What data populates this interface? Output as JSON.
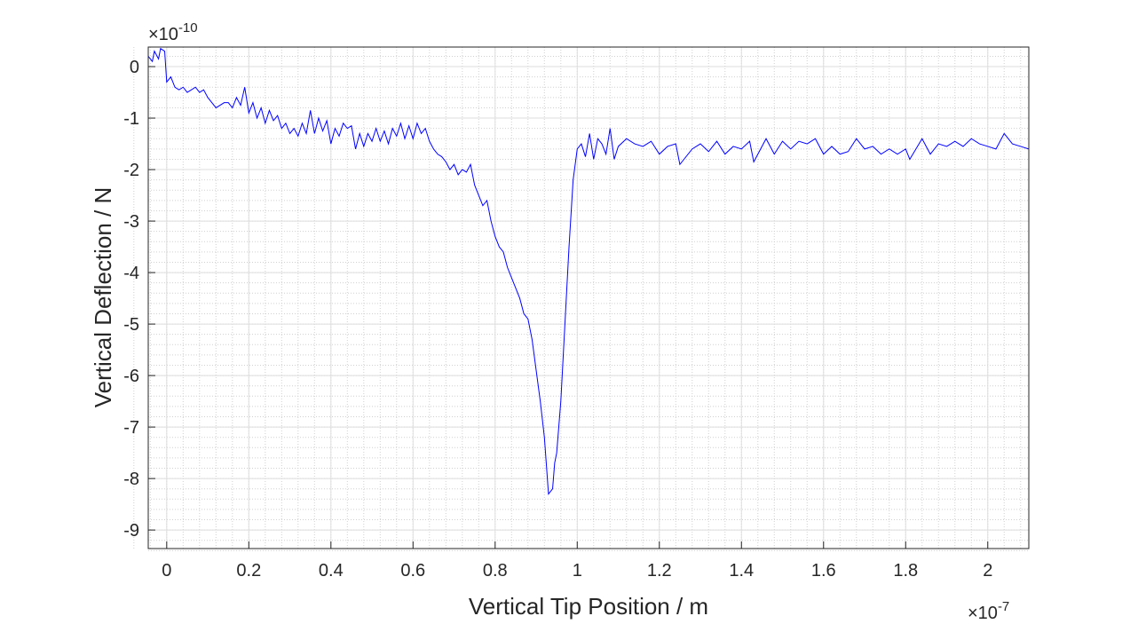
{
  "chart_data": {
    "type": "line",
    "xlabel": "Vertical Tip Position / m",
    "ylabel": "Vertical Deflection / N",
    "x_exponent": {
      "base": "×10",
      "power": "-7"
    },
    "y_exponent": {
      "base": "×10",
      "power": "-10"
    },
    "xlim": [
      -0.045,
      2.1
    ],
    "ylim": [
      -9.36,
      0.38
    ],
    "xticks": [
      0,
      0.2,
      0.4,
      0.6,
      0.8,
      1,
      1.2,
      1.4,
      1.6,
      1.8,
      2
    ],
    "yticks": [
      -9,
      -8,
      -7,
      -6,
      -5,
      -4,
      -3,
      -2,
      -1,
      0
    ],
    "grid": true,
    "minor_grid": true,
    "x": [
      -0.045,
      -0.035,
      -0.03,
      -0.02,
      -0.015,
      -0.005,
      0.0,
      0.01,
      0.02,
      0.03,
      0.04,
      0.05,
      0.06,
      0.07,
      0.08,
      0.09,
      0.1,
      0.12,
      0.14,
      0.15,
      0.16,
      0.17,
      0.18,
      0.19,
      0.2,
      0.21,
      0.22,
      0.23,
      0.24,
      0.25,
      0.26,
      0.27,
      0.28,
      0.29,
      0.3,
      0.31,
      0.32,
      0.33,
      0.34,
      0.35,
      0.36,
      0.37,
      0.38,
      0.39,
      0.4,
      0.41,
      0.42,
      0.43,
      0.44,
      0.45,
      0.46,
      0.47,
      0.48,
      0.49,
      0.5,
      0.51,
      0.52,
      0.53,
      0.54,
      0.55,
      0.56,
      0.57,
      0.58,
      0.59,
      0.6,
      0.61,
      0.62,
      0.63,
      0.64,
      0.65,
      0.66,
      0.67,
      0.68,
      0.69,
      0.7,
      0.71,
      0.72,
      0.73,
      0.74,
      0.75,
      0.76,
      0.77,
      0.78,
      0.79,
      0.8,
      0.81,
      0.82,
      0.83,
      0.84,
      0.85,
      0.86,
      0.87,
      0.88,
      0.89,
      0.9,
      0.91,
      0.92,
      0.93,
      0.94,
      0.945,
      0.95,
      0.96,
      0.97,
      0.98,
      0.99,
      1.0,
      1.01,
      1.02,
      1.03,
      1.04,
      1.05,
      1.06,
      1.07,
      1.08,
      1.09,
      1.1,
      1.12,
      1.14,
      1.16,
      1.18,
      1.2,
      1.22,
      1.24,
      1.25,
      1.28,
      1.3,
      1.32,
      1.34,
      1.36,
      1.38,
      1.4,
      1.42,
      1.43,
      1.46,
      1.48,
      1.5,
      1.52,
      1.54,
      1.56,
      1.58,
      1.6,
      1.62,
      1.64,
      1.66,
      1.68,
      1.7,
      1.72,
      1.74,
      1.76,
      1.78,
      1.8,
      1.81,
      1.84,
      1.86,
      1.88,
      1.9,
      1.92,
      1.94,
      1.96,
      1.98,
      2.0,
      2.02,
      2.04,
      2.06,
      2.08,
      2.1
    ],
    "series": [
      {
        "color": "#0000ff",
        "values": [
          0.2,
          0.1,
          0.3,
          0.15,
          0.35,
          0.3,
          -0.3,
          -0.2,
          -0.4,
          -0.45,
          -0.4,
          -0.5,
          -0.45,
          -0.4,
          -0.5,
          -0.45,
          -0.6,
          -0.8,
          -0.7,
          -0.7,
          -0.8,
          -0.6,
          -0.75,
          -0.4,
          -0.9,
          -0.7,
          -1.0,
          -0.8,
          -1.1,
          -0.85,
          -1.05,
          -0.95,
          -1.2,
          -1.1,
          -1.3,
          -1.2,
          -1.35,
          -1.1,
          -1.3,
          -0.85,
          -1.3,
          -1.0,
          -1.25,
          -1.05,
          -1.5,
          -1.2,
          -1.35,
          -1.1,
          -1.2,
          -1.15,
          -1.6,
          -1.3,
          -1.55,
          -1.3,
          -1.45,
          -1.2,
          -1.45,
          -1.25,
          -1.5,
          -1.2,
          -1.35,
          -1.1,
          -1.4,
          -1.15,
          -1.4,
          -1.1,
          -1.3,
          -1.2,
          -1.45,
          -1.6,
          -1.7,
          -1.75,
          -1.85,
          -2.0,
          -1.9,
          -2.1,
          -2.0,
          -2.05,
          -1.9,
          -2.3,
          -2.5,
          -2.7,
          -2.6,
          -3.0,
          -3.3,
          -3.5,
          -3.6,
          -3.9,
          -4.1,
          -4.3,
          -4.5,
          -4.8,
          -4.9,
          -5.3,
          -5.9,
          -6.5,
          -7.2,
          -8.3,
          -8.2,
          -7.7,
          -7.5,
          -6.5,
          -5.0,
          -3.5,
          -2.2,
          -1.6,
          -1.5,
          -1.75,
          -1.3,
          -1.8,
          -1.4,
          -1.5,
          -1.7,
          -1.2,
          -1.8,
          -1.55,
          -1.4,
          -1.5,
          -1.55,
          -1.45,
          -1.7,
          -1.55,
          -1.5,
          -1.9,
          -1.6,
          -1.5,
          -1.65,
          -1.45,
          -1.7,
          -1.55,
          -1.6,
          -1.45,
          -1.85,
          -1.4,
          -1.7,
          -1.45,
          -1.6,
          -1.45,
          -1.5,
          -1.4,
          -1.7,
          -1.55,
          -1.7,
          -1.65,
          -1.4,
          -1.6,
          -1.55,
          -1.7,
          -1.6,
          -1.7,
          -1.6,
          -1.8,
          -1.4,
          -1.7,
          -1.5,
          -1.55,
          -1.45,
          -1.55,
          -1.4,
          -1.5,
          -1.55,
          -1.6,
          -1.3,
          -1.5,
          -1.55,
          -1.6
        ]
      }
    ]
  }
}
